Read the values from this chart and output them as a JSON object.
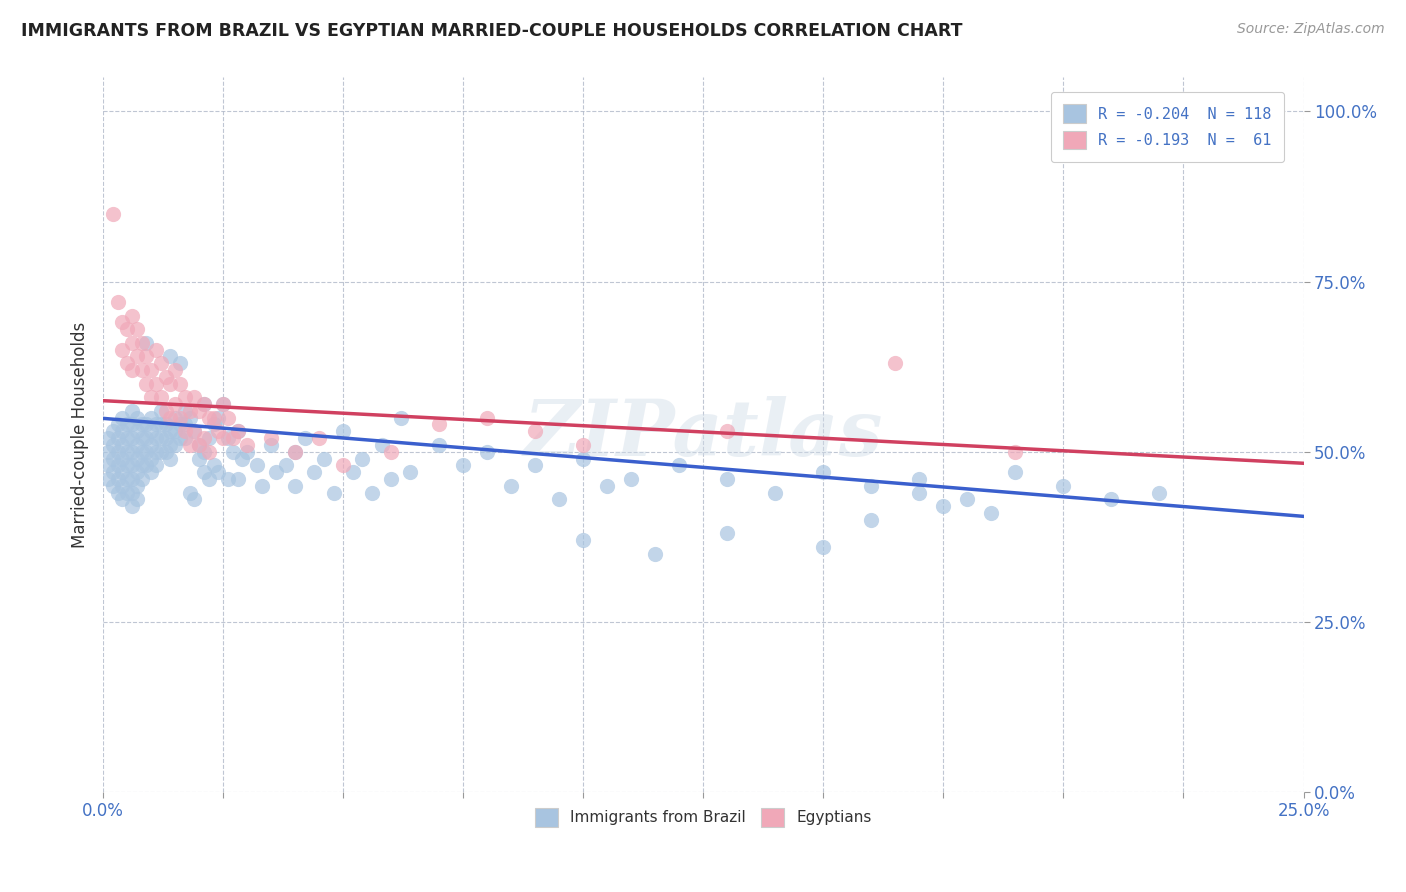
{
  "title": "IMMIGRANTS FROM BRAZIL VS EGYPTIAN MARRIED-COUPLE HOUSEHOLDS CORRELATION CHART",
  "source": "Source: ZipAtlas.com",
  "ylabel": "Married-couple Households",
  "ylabel_ticks": [
    "0.0%",
    "25.0%",
    "50.0%",
    "75.0%",
    "100.0%"
  ],
  "ylabel_values": [
    0.0,
    0.25,
    0.5,
    0.75,
    1.0
  ],
  "xmin": 0.0,
  "xmax": 0.25,
  "ymin": 0.0,
  "ymax": 1.05,
  "legend_line1": "R = -0.204  N = 118",
  "legend_line2": "R = -0.193  N =  61",
  "series1_color": "#a8c4e0",
  "series2_color": "#f0a8b8",
  "line1_color": "#3a5fcd",
  "line2_color": "#d04060",
  "watermark": "ZIPatlas",
  "legend_label1": "Immigrants from Brazil",
  "legend_label2": "Egyptians",
  "brazil_scatter": [
    [
      0.001,
      0.52
    ],
    [
      0.001,
      0.5
    ],
    [
      0.001,
      0.48
    ],
    [
      0.001,
      0.46
    ],
    [
      0.002,
      0.53
    ],
    [
      0.002,
      0.51
    ],
    [
      0.002,
      0.49
    ],
    [
      0.002,
      0.47
    ],
    [
      0.002,
      0.45
    ],
    [
      0.003,
      0.54
    ],
    [
      0.003,
      0.52
    ],
    [
      0.003,
      0.5
    ],
    [
      0.003,
      0.48
    ],
    [
      0.003,
      0.46
    ],
    [
      0.003,
      0.44
    ],
    [
      0.004,
      0.55
    ],
    [
      0.004,
      0.53
    ],
    [
      0.004,
      0.51
    ],
    [
      0.004,
      0.49
    ],
    [
      0.004,
      0.47
    ],
    [
      0.004,
      0.45
    ],
    [
      0.004,
      0.43
    ],
    [
      0.005,
      0.54
    ],
    [
      0.005,
      0.52
    ],
    [
      0.005,
      0.5
    ],
    [
      0.005,
      0.48
    ],
    [
      0.005,
      0.46
    ],
    [
      0.005,
      0.44
    ],
    [
      0.006,
      0.56
    ],
    [
      0.006,
      0.54
    ],
    [
      0.006,
      0.52
    ],
    [
      0.006,
      0.5
    ],
    [
      0.006,
      0.48
    ],
    [
      0.006,
      0.46
    ],
    [
      0.006,
      0.44
    ],
    [
      0.006,
      0.42
    ],
    [
      0.007,
      0.55
    ],
    [
      0.007,
      0.53
    ],
    [
      0.007,
      0.51
    ],
    [
      0.007,
      0.49
    ],
    [
      0.007,
      0.47
    ],
    [
      0.007,
      0.45
    ],
    [
      0.007,
      0.43
    ],
    [
      0.008,
      0.54
    ],
    [
      0.008,
      0.52
    ],
    [
      0.008,
      0.5
    ],
    [
      0.008,
      0.48
    ],
    [
      0.008,
      0.46
    ],
    [
      0.009,
      0.66
    ],
    [
      0.009,
      0.54
    ],
    [
      0.009,
      0.52
    ],
    [
      0.009,
      0.5
    ],
    [
      0.009,
      0.48
    ],
    [
      0.01,
      0.55
    ],
    [
      0.01,
      0.53
    ],
    [
      0.01,
      0.51
    ],
    [
      0.01,
      0.49
    ],
    [
      0.01,
      0.47
    ],
    [
      0.011,
      0.54
    ],
    [
      0.011,
      0.52
    ],
    [
      0.011,
      0.5
    ],
    [
      0.011,
      0.48
    ],
    [
      0.012,
      0.56
    ],
    [
      0.012,
      0.54
    ],
    [
      0.012,
      0.52
    ],
    [
      0.012,
      0.5
    ],
    [
      0.013,
      0.54
    ],
    [
      0.013,
      0.52
    ],
    [
      0.013,
      0.5
    ],
    [
      0.014,
      0.64
    ],
    [
      0.014,
      0.53
    ],
    [
      0.014,
      0.51
    ],
    [
      0.014,
      0.49
    ],
    [
      0.015,
      0.55
    ],
    [
      0.015,
      0.53
    ],
    [
      0.015,
      0.51
    ],
    [
      0.016,
      0.63
    ],
    [
      0.016,
      0.54
    ],
    [
      0.016,
      0.52
    ],
    [
      0.017,
      0.56
    ],
    [
      0.017,
      0.54
    ],
    [
      0.017,
      0.52
    ],
    [
      0.018,
      0.55
    ],
    [
      0.018,
      0.44
    ],
    [
      0.019,
      0.53
    ],
    [
      0.019,
      0.43
    ],
    [
      0.02,
      0.51
    ],
    [
      0.02,
      0.49
    ],
    [
      0.021,
      0.57
    ],
    [
      0.021,
      0.5
    ],
    [
      0.021,
      0.47
    ],
    [
      0.022,
      0.52
    ],
    [
      0.022,
      0.46
    ],
    [
      0.023,
      0.54
    ],
    [
      0.023,
      0.48
    ],
    [
      0.024,
      0.55
    ],
    [
      0.024,
      0.47
    ],
    [
      0.025,
      0.57
    ],
    [
      0.026,
      0.52
    ],
    [
      0.026,
      0.46
    ],
    [
      0.027,
      0.5
    ],
    [
      0.028,
      0.53
    ],
    [
      0.028,
      0.46
    ],
    [
      0.029,
      0.49
    ],
    [
      0.03,
      0.5
    ],
    [
      0.032,
      0.48
    ],
    [
      0.033,
      0.45
    ],
    [
      0.035,
      0.51
    ],
    [
      0.036,
      0.47
    ],
    [
      0.038,
      0.48
    ],
    [
      0.04,
      0.5
    ],
    [
      0.04,
      0.45
    ],
    [
      0.042,
      0.52
    ],
    [
      0.044,
      0.47
    ],
    [
      0.046,
      0.49
    ],
    [
      0.048,
      0.44
    ],
    [
      0.05,
      0.53
    ],
    [
      0.052,
      0.47
    ],
    [
      0.054,
      0.49
    ],
    [
      0.056,
      0.44
    ],
    [
      0.058,
      0.51
    ],
    [
      0.06,
      0.46
    ],
    [
      0.062,
      0.55
    ],
    [
      0.064,
      0.47
    ],
    [
      0.07,
      0.51
    ],
    [
      0.075,
      0.48
    ],
    [
      0.08,
      0.5
    ],
    [
      0.085,
      0.45
    ],
    [
      0.09,
      0.48
    ],
    [
      0.095,
      0.43
    ],
    [
      0.1,
      0.49
    ],
    [
      0.105,
      0.45
    ],
    [
      0.11,
      0.46
    ],
    [
      0.12,
      0.48
    ],
    [
      0.13,
      0.46
    ],
    [
      0.14,
      0.44
    ],
    [
      0.15,
      0.47
    ],
    [
      0.16,
      0.45
    ],
    [
      0.17,
      0.46
    ],
    [
      0.18,
      0.43
    ],
    [
      0.19,
      0.47
    ],
    [
      0.2,
      0.45
    ],
    [
      0.21,
      0.43
    ],
    [
      0.22,
      0.44
    ],
    [
      0.1,
      0.37
    ],
    [
      0.115,
      0.35
    ],
    [
      0.13,
      0.38
    ],
    [
      0.15,
      0.36
    ],
    [
      0.16,
      0.4
    ],
    [
      0.17,
      0.44
    ],
    [
      0.175,
      0.42
    ],
    [
      0.185,
      0.41
    ]
  ],
  "egypt_scatter": [
    [
      0.002,
      0.85
    ],
    [
      0.003,
      0.72
    ],
    [
      0.004,
      0.69
    ],
    [
      0.004,
      0.65
    ],
    [
      0.005,
      0.68
    ],
    [
      0.005,
      0.63
    ],
    [
      0.006,
      0.7
    ],
    [
      0.006,
      0.66
    ],
    [
      0.006,
      0.62
    ],
    [
      0.007,
      0.68
    ],
    [
      0.007,
      0.64
    ],
    [
      0.008,
      0.66
    ],
    [
      0.008,
      0.62
    ],
    [
      0.009,
      0.64
    ],
    [
      0.009,
      0.6
    ],
    [
      0.01,
      0.62
    ],
    [
      0.01,
      0.58
    ],
    [
      0.011,
      0.65
    ],
    [
      0.011,
      0.6
    ],
    [
      0.012,
      0.63
    ],
    [
      0.012,
      0.58
    ],
    [
      0.013,
      0.61
    ],
    [
      0.013,
      0.56
    ],
    [
      0.014,
      0.6
    ],
    [
      0.014,
      0.55
    ],
    [
      0.015,
      0.62
    ],
    [
      0.015,
      0.57
    ],
    [
      0.016,
      0.6
    ],
    [
      0.016,
      0.55
    ],
    [
      0.017,
      0.58
    ],
    [
      0.017,
      0.53
    ],
    [
      0.018,
      0.56
    ],
    [
      0.018,
      0.51
    ],
    [
      0.019,
      0.58
    ],
    [
      0.019,
      0.53
    ],
    [
      0.02,
      0.56
    ],
    [
      0.02,
      0.51
    ],
    [
      0.021,
      0.57
    ],
    [
      0.021,
      0.52
    ],
    [
      0.022,
      0.55
    ],
    [
      0.022,
      0.5
    ],
    [
      0.023,
      0.55
    ],
    [
      0.024,
      0.53
    ],
    [
      0.025,
      0.57
    ],
    [
      0.025,
      0.52
    ],
    [
      0.026,
      0.55
    ],
    [
      0.027,
      0.52
    ],
    [
      0.028,
      0.53
    ],
    [
      0.03,
      0.51
    ],
    [
      0.035,
      0.52
    ],
    [
      0.04,
      0.5
    ],
    [
      0.045,
      0.52
    ],
    [
      0.05,
      0.48
    ],
    [
      0.06,
      0.5
    ],
    [
      0.07,
      0.54
    ],
    [
      0.08,
      0.55
    ],
    [
      0.09,
      0.53
    ],
    [
      0.1,
      0.51
    ],
    [
      0.13,
      0.53
    ],
    [
      0.165,
      0.63
    ],
    [
      0.19,
      0.5
    ]
  ],
  "brazil_trendline": [
    0.0,
    0.549,
    0.25,
    0.405
  ],
  "egypt_trendline": [
    0.0,
    0.575,
    0.25,
    0.483
  ]
}
